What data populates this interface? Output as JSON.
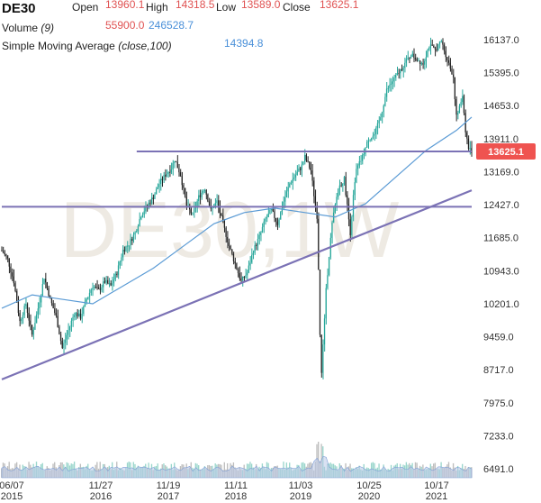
{
  "legend": {
    "symbol": "DE30",
    "open_label": "Open",
    "open_value": "13960.1",
    "high_label": "High",
    "high_value": "14318.5",
    "low_label": "Low",
    "low_value": "13589.0",
    "close_label": "Close",
    "close_value": "13625.1",
    "volume_label": "Volume",
    "volume_param": "(9)",
    "volume_value_1": "55900.0",
    "volume_value_2": "246528.7",
    "sma_label": "Simple Moving Average",
    "sma_param": "(close,100)",
    "sma_value": "14394.8"
  },
  "watermark": "DE30,1W",
  "colors": {
    "up": "#26a69a",
    "down": "#222222",
    "sma": "#5b9bd5",
    "trendline": "#7b72b5",
    "volume_fill": "#b9c9e8",
    "price_badge": "#ef5350",
    "legend_red": "#e05252",
    "legend_blue": "#4a90d9"
  },
  "chart_data": {
    "type": "candlestick",
    "title": "DE30",
    "timeframe": "1W",
    "y_axis_ticks": [
      16137.0,
      15395.0,
      14653.0,
      13911.0,
      13169.0,
      12427.0,
      11685.0,
      10943.0,
      10201.0,
      9459.0,
      8717.0,
      7975.0,
      7233.0,
      6491.0
    ],
    "ylim": [
      6160,
      16450
    ],
    "x_axis_labels": [
      {
        "date": "06/07",
        "year": "2015"
      },
      {
        "date": "11/27",
        "year": "2016"
      },
      {
        "date": "11/19",
        "year": "2017"
      },
      {
        "date": "11/11",
        "year": "2018"
      },
      {
        "date": "11/03",
        "year": "2019"
      },
      {
        "date": "10/25",
        "year": "2020"
      },
      {
        "date": "10/17",
        "year": "2021"
      }
    ],
    "current_price": 13625.1,
    "current_price_label": "13625.1",
    "price_path": [
      [
        0,
        11400
      ],
      [
        4,
        11200
      ],
      [
        8,
        10700
      ],
      [
        12,
        9800
      ],
      [
        16,
        10200
      ],
      [
        20,
        9500
      ],
      [
        24,
        10100
      ],
      [
        28,
        10800
      ],
      [
        32,
        10300
      ],
      [
        36,
        9900
      ],
      [
        40,
        9200
      ],
      [
        44,
        9600
      ],
      [
        48,
        10000
      ],
      [
        52,
        9900
      ],
      [
        56,
        10300
      ],
      [
        60,
        10600
      ],
      [
        64,
        10500
      ],
      [
        68,
        10700
      ],
      [
        72,
        10600
      ],
      [
        76,
        10900
      ],
      [
        80,
        11400
      ],
      [
        84,
        11550
      ],
      [
        88,
        11800
      ],
      [
        92,
        12200
      ],
      [
        96,
        12400
      ],
      [
        100,
        12600
      ],
      [
        104,
        12900
      ],
      [
        108,
        13100
      ],
      [
        112,
        13250
      ],
      [
        114,
        13450
      ],
      [
        118,
        13100
      ],
      [
        122,
        12400
      ],
      [
        126,
        12200
      ],
      [
        130,
        12600
      ],
      [
        134,
        12800
      ],
      [
        138,
        12300
      ],
      [
        142,
        12500
      ],
      [
        146,
        12000
      ],
      [
        150,
        11500
      ],
      [
        154,
        11100
      ],
      [
        158,
        10700
      ],
      [
        162,
        10900
      ],
      [
        166,
        11400
      ],
      [
        170,
        11700
      ],
      [
        174,
        12100
      ],
      [
        178,
        12300
      ],
      [
        182,
        12000
      ],
      [
        186,
        12500
      ],
      [
        190,
        12900
      ],
      [
        194,
        13100
      ],
      [
        198,
        13300
      ],
      [
        200,
        13500
      ],
      [
        204,
        13200
      ],
      [
        208,
        12100
      ],
      [
        209,
        11000
      ],
      [
        210,
        9500
      ],
      [
        211,
        8600
      ],
      [
        212,
        9300
      ],
      [
        214,
        10500
      ],
      [
        216,
        11300
      ],
      [
        218,
        12000
      ],
      [
        222,
        12800
      ],
      [
        226,
        13000
      ],
      [
        228,
        12400
      ],
      [
        230,
        11800
      ],
      [
        232,
        12600
      ],
      [
        234,
        13200
      ],
      [
        238,
        13500
      ],
      [
        242,
        13900
      ],
      [
        246,
        14000
      ],
      [
        250,
        14400
      ],
      [
        254,
        15000
      ],
      [
        258,
        15200
      ],
      [
        262,
        15400
      ],
      [
        266,
        15600
      ],
      [
        270,
        15800
      ],
      [
        274,
        15700
      ],
      [
        278,
        15600
      ],
      [
        282,
        16000
      ],
      [
        286,
        15900
      ],
      [
        290,
        16100
      ],
      [
        294,
        15700
      ],
      [
        298,
        15300
      ],
      [
        300,
        14400
      ],
      [
        302,
        14600
      ],
      [
        304,
        14900
      ],
      [
        306,
        14100
      ],
      [
        308,
        13700
      ],
      [
        310,
        13625
      ]
    ],
    "moving_average": {
      "name": "Simple Moving Average (close,100)",
      "value": 14394.8,
      "points": [
        [
          0,
          10100
        ],
        [
          20,
          10400
        ],
        [
          40,
          10300
        ],
        [
          60,
          10200
        ],
        [
          80,
          10600
        ],
        [
          100,
          11000
        ],
        [
          120,
          11500
        ],
        [
          140,
          12000
        ],
        [
          160,
          12250
        ],
        [
          180,
          12350
        ],
        [
          200,
          12250
        ],
        [
          220,
          12150
        ],
        [
          240,
          12450
        ],
        [
          260,
          13050
        ],
        [
          280,
          13650
        ],
        [
          300,
          14100
        ],
        [
          310,
          14394.8
        ]
      ]
    },
    "horizontal_lines": [
      {
        "value": 13625.1,
        "x_start": 89,
        "x_end": 310
      },
      {
        "value": 12380,
        "x_start": 0,
        "x_end": 310
      }
    ],
    "trendline": {
      "start": [
        0,
        8500
      ],
      "end": [
        310,
        12750
      ]
    },
    "volume": {
      "name": "Volume (9)",
      "values": [
        55900.0,
        246528.7
      ]
    }
  }
}
